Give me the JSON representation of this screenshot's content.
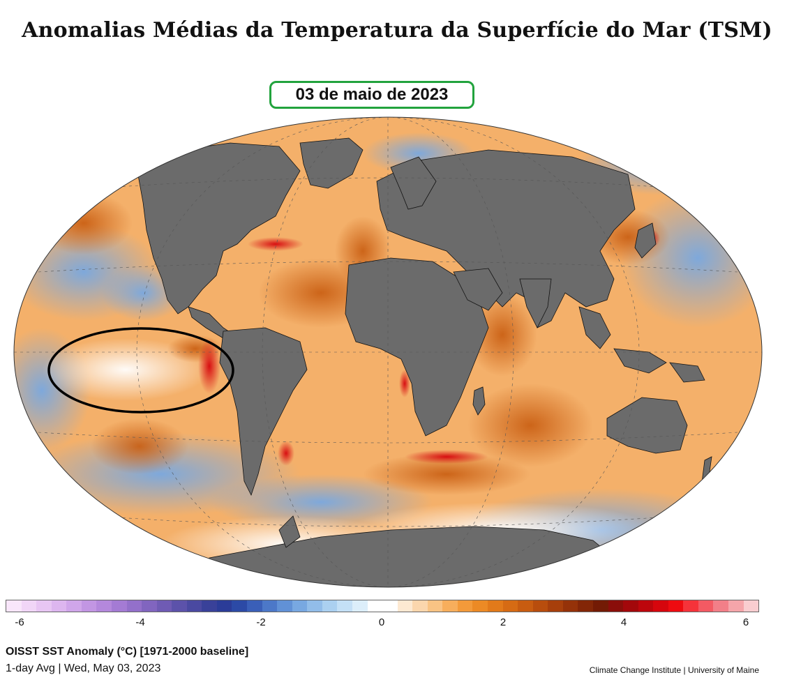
{
  "title": "Anomalias Médias da Temperatura da Superfície do Mar (TSM)",
  "date_label": "03 de maio de 2023",
  "colorbar": {
    "colors": [
      "#f9e6fb",
      "#f1d6f7",
      "#e8c6f3",
      "#ddb6ef",
      "#d0a6ea",
      "#c296e3",
      "#b488dc",
      "#a47bd4",
      "#9370ca",
      "#8165bf",
      "#6f5bb4",
      "#5c52aa",
      "#4a49a1",
      "#394199",
      "#2b3c98",
      "#2c4aa6",
      "#3a5fb8",
      "#4c78c8",
      "#6191d6",
      "#78a8e1",
      "#92bde9",
      "#abd0f0",
      "#c4e0f6",
      "#dceefa",
      "#ffffff",
      "#ffffff",
      "#fde9d2",
      "#fbd6ad",
      "#f9c384",
      "#f7ae5c",
      "#f39a3a",
      "#ec8a25",
      "#e27a1a",
      "#d66b14",
      "#c85c10",
      "#b84d0d",
      "#a73f0b",
      "#953209",
      "#832607",
      "#731b05",
      "#8a0e0a",
      "#a3080b",
      "#bd060c",
      "#d6060d",
      "#ee0b10",
      "#f5333a",
      "#f35a63",
      "#f27f88",
      "#f5a5aa",
      "#f9cdd0"
    ],
    "tick_labels": [
      "-6",
      "-4",
      "-2",
      "0",
      "2",
      "4",
      "6"
    ]
  },
  "footer": {
    "product": "OISST SST Anomaly (°C) [1971-2000 baseline]",
    "period": "1-day Avg | Wed, May 03, 2023",
    "credit": "Climate Change Institute | University of Maine"
  },
  "map": {
    "projection": "Winkel Tripel (global)",
    "land_color": "#6b6b6b",
    "ocean_base_color": "#f5b36b",
    "highlight_ellipse_color": "#000000"
  }
}
